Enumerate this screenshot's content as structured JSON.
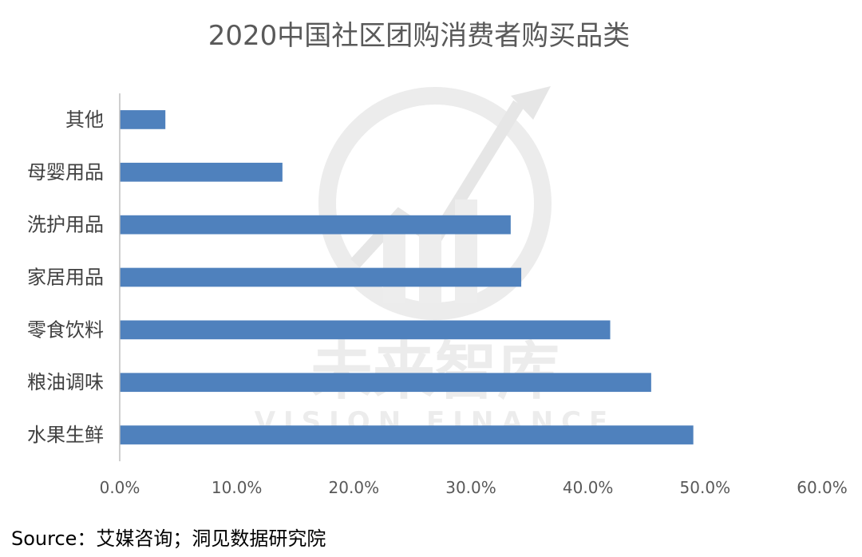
{
  "colors": {
    "bar": "#4f81bd",
    "axis": "#bfbfbf",
    "watermark": "#ececec"
  },
  "watermark": {
    "cn": "未来智库",
    "en": "VISION FINANCE"
  },
  "source": "Source：艾媒咨询；洞见数据研究院",
  "chart_data": {
    "type": "bar",
    "orientation": "horizontal",
    "title": "2020中国社区团购消费者购买品类",
    "categories": [
      "水果生鲜",
      "粮油调味",
      "零食饮料",
      "家居用品",
      "洗护用品",
      "母婴用品",
      "其他"
    ],
    "values": [
      0.49,
      0.454,
      0.419,
      0.343,
      0.334,
      0.139,
      0.039
    ],
    "xlim": [
      0,
      0.6
    ],
    "xticks": [
      "0.0%",
      "10.0%",
      "20.0%",
      "30.0%",
      "40.0%",
      "50.0%",
      "60.0%"
    ],
    "grid": false,
    "legend": "none"
  }
}
